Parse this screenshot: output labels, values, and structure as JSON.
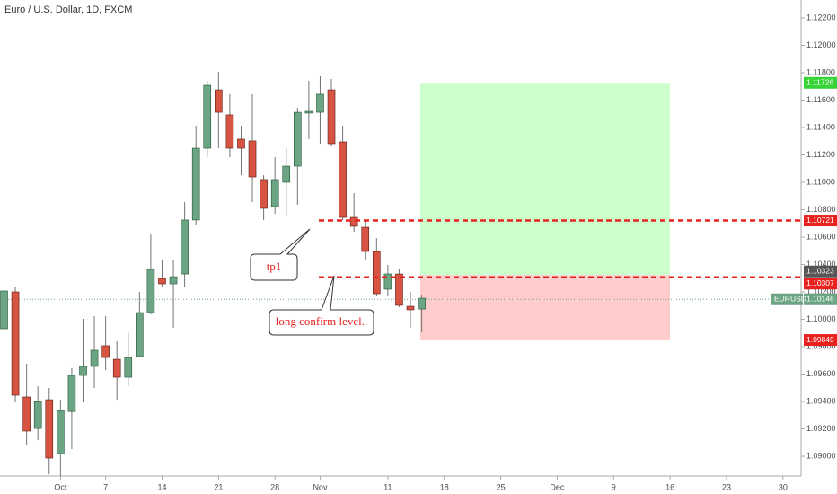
{
  "chart_data": {
    "type": "candlestick",
    "title": "Euro / U.S. Dollar, 1D, FXCM",
    "categories": [
      null,
      null,
      null,
      null,
      null,
      "Oct",
      null,
      null,
      null,
      "7",
      null,
      null,
      null,
      null,
      "14",
      null,
      null,
      null,
      null,
      "21",
      null,
      null,
      null,
      null,
      "28",
      null,
      null,
      null,
      "Nov",
      null,
      null,
      null,
      null,
      null,
      "11",
      null,
      null,
      null,
      null,
      "18",
      null,
      null,
      null,
      null,
      "25",
      null,
      null,
      null,
      null,
      "Dec",
      null,
      null,
      null,
      null,
      "9",
      null,
      null,
      null,
      null,
      "16",
      null,
      null,
      null,
      null,
      "23",
      null,
      null,
      null,
      null,
      "30"
    ],
    "open": [
      1.09931,
      1.102,
      1.09433,
      1.09203,
      1.09413,
      1.09019,
      1.09327,
      1.0959,
      1.09656,
      1.09807,
      1.09708,
      1.09577,
      1.09728,
      1.10049,
      1.10298,
      1.10259,
      1.10331,
      1.10725,
      1.11249,
      1.11675,
      1.11492,
      1.11315,
      1.11302,
      1.1102,
      1.10823,
      1.11,
      1.11118,
      1.11505,
      1.11511,
      1.11675,
      1.11295,
      1.10744,
      1.10672,
      1.10495,
      1.1022,
      1.10331,
      1.10095,
      1.10075,
      null,
      null,
      null,
      null,
      null,
      null,
      null,
      null,
      null,
      null,
      null,
      null,
      null,
      null,
      null,
      null,
      null,
      null,
      null,
      null,
      null,
      null,
      null,
      null,
      null,
      null,
      null,
      null,
      null,
      null,
      null,
      null
    ],
    "high": [
      1.10246,
      1.10233,
      1.09675,
      1.09511,
      1.09498,
      1.09413,
      1.09643,
      1.10003,
      1.10023,
      1.10023,
      1.09839,
      1.09905,
      1.102,
      1.10626,
      1.10429,
      1.10429,
      1.10856,
      1.11413,
      1.11741,
      1.11806,
      1.11643,
      1.11413,
      1.11643,
      1.11052,
      1.11184,
      1.11249,
      1.11544,
      1.11741,
      1.11774,
      1.11754,
      1.11413,
      1.10921,
      1.10725,
      1.10593,
      1.10397,
      1.10364,
      1.102,
      1.1018,
      null,
      null,
      null,
      null,
      null,
      null,
      null,
      null,
      null,
      null,
      null,
      null,
      null,
      null,
      null,
      null,
      null,
      null,
      null,
      null,
      null,
      null,
      null,
      null,
      null,
      null,
      null,
      null,
      null,
      null,
      null,
      null
    ],
    "low": [
      1.09918,
      1.09393,
      1.09085,
      1.09118,
      1.08869,
      1.08856,
      1.09052,
      1.09393,
      1.09498,
      1.09629,
      1.09413,
      1.09511,
      1.09721,
      1.10036,
      1.10233,
      1.09938,
      1.10233,
      1.10692,
      1.11184,
      1.11249,
      1.11184,
      1.11052,
      1.10856,
      1.10725,
      1.1077,
      1.10757,
      1.10836,
      1.11315,
      1.11282,
      1.11269,
      1.10725,
      1.10639,
      1.10429,
      1.10167,
      1.10167,
      1.10089,
      1.09938,
      1.09905,
      null,
      null,
      null,
      null,
      null,
      null,
      null,
      null,
      null,
      null,
      null,
      null,
      null,
      null,
      null,
      null,
      null,
      null,
      null,
      null,
      null,
      null,
      null,
      null,
      null,
      null,
      null,
      null,
      null,
      null,
      null,
      null
    ],
    "close": [
      1.10207,
      1.09446,
      1.09184,
      1.09399,
      1.08987,
      1.09334,
      1.0959,
      1.09656,
      1.09774,
      1.09721,
      1.09577,
      1.09721,
      1.10049,
      1.10364,
      1.10259,
      1.10311,
      1.10725,
      1.11249,
      1.11708,
      1.11511,
      1.11249,
      1.11249,
      1.11039,
      1.1081,
      1.1102,
      1.11118,
      1.11511,
      1.11518,
      1.11643,
      1.11282,
      1.10744,
      1.10679,
      1.10495,
      1.10187,
      1.10331,
      1.10102,
      1.10069,
      1.10154,
      null,
      null,
      null,
      null,
      null,
      null,
      null,
      null,
      null,
      null,
      null,
      null,
      null,
      null,
      null,
      null,
      null,
      null,
      null,
      null,
      null,
      null,
      null,
      null,
      null,
      null,
      null,
      null,
      null,
      null,
      null,
      null
    ],
    "up_color": "#6ba583",
    "down_color": "#d75442",
    "ylim": [
      1.08856,
      1.12331
    ],
    "yticks": [
      {
        "value": 1.09,
        "label": "1.09000"
      },
      {
        "value": 1.092,
        "label": "1.09200"
      },
      {
        "value": 1.094,
        "label": "1.09400"
      },
      {
        "value": 1.096,
        "label": "1.09600"
      },
      {
        "value": 1.098,
        "label": "1.09800"
      },
      {
        "value": 1.1,
        "label": "1.10000"
      },
      {
        "value": 1.102,
        "label": "1.10200"
      },
      {
        "value": 1.104,
        "label": "1.10400"
      },
      {
        "value": 1.106,
        "label": "1.10600"
      },
      {
        "value": 1.108,
        "label": "1.10800"
      },
      {
        "value": 1.11,
        "label": "1.11000"
      },
      {
        "value": 1.112,
        "label": "1.11200"
      },
      {
        "value": 1.114,
        "label": "1.11400"
      },
      {
        "value": 1.116,
        "label": "1.11600"
      },
      {
        "value": 1.118,
        "label": "1.11800"
      },
      {
        "value": 1.12,
        "label": "1.12000"
      },
      {
        "value": 1.122,
        "label": "1.12200"
      }
    ],
    "grid": false,
    "levels": [
      {
        "value": 1.10721,
        "color": "#e8221f"
      },
      {
        "value": 1.10307,
        "color": "#e8221f"
      }
    ],
    "position": {
      "target": 1.11726,
      "entry": 1.10323,
      "stop": 1.09849,
      "target_color": "#ccffcc",
      "stop_color": "#ffcccc"
    },
    "current": {
      "symbol": "EURUSD",
      "value": 1.10146,
      "color": "#6ba583"
    },
    "annotations": [
      {
        "text": "tp1"
      },
      {
        "text": "long confirm level.."
      }
    ]
  }
}
